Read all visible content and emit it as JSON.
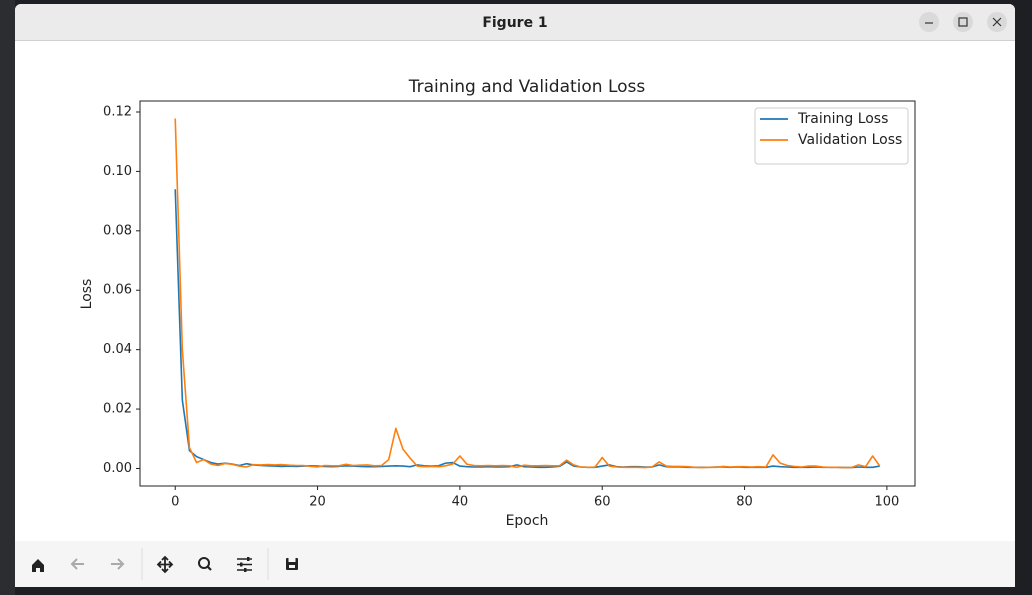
{
  "window": {
    "title": "Figure 1"
  },
  "chart_data": {
    "type": "line",
    "title": "Training and Validation Loss",
    "x_label": "Epoch",
    "y_label": "Loss",
    "x": [
      0,
      1,
      2,
      3,
      4,
      5,
      6,
      7,
      8,
      9,
      10,
      11,
      12,
      13,
      14,
      15,
      16,
      17,
      18,
      19,
      20,
      21,
      22,
      23,
      24,
      25,
      26,
      27,
      28,
      29,
      30,
      31,
      32,
      33,
      34,
      35,
      36,
      37,
      38,
      39,
      40,
      41,
      42,
      43,
      44,
      45,
      46,
      47,
      48,
      49,
      50,
      51,
      52,
      53,
      54,
      55,
      56,
      57,
      58,
      59,
      60,
      61,
      62,
      63,
      64,
      65,
      66,
      67,
      68,
      69,
      70,
      71,
      72,
      73,
      74,
      75,
      76,
      77,
      78,
      79,
      80,
      81,
      82,
      83,
      84,
      85,
      86,
      87,
      88,
      89,
      90,
      91,
      92,
      93,
      94,
      95,
      96,
      97,
      98,
      99
    ],
    "series": [
      {
        "name": "Training Loss",
        "color": "#1f77b4",
        "values": [
          0.094,
          0.023,
          0.006,
          0.004,
          0.003,
          0.002,
          0.0015,
          0.0018,
          0.0015,
          0.001,
          0.0016,
          0.0012,
          0.001,
          0.0009,
          0.0008,
          0.0007,
          0.0008,
          0.0007,
          0.0008,
          0.0009,
          0.0008,
          0.0007,
          0.0006,
          0.0007,
          0.0009,
          0.0008,
          0.0007,
          0.0006,
          0.0006,
          0.0007,
          0.0008,
          0.0009,
          0.0008,
          0.0006,
          0.0012,
          0.0009,
          0.0008,
          0.0009,
          0.0018,
          0.002,
          0.0008,
          0.0006,
          0.0005,
          0.0005,
          0.0006,
          0.0005,
          0.0005,
          0.0006,
          0.0012,
          0.0006,
          0.0005,
          0.0004,
          0.0004,
          0.0005,
          0.0007,
          0.0022,
          0.0008,
          0.0005,
          0.0004,
          0.0004,
          0.0008,
          0.0012,
          0.0006,
          0.0005,
          0.0006,
          0.0006,
          0.0005,
          0.0005,
          0.0012,
          0.0006,
          0.0005,
          0.0005,
          0.0004,
          0.0004,
          0.0004,
          0.0004,
          0.0005,
          0.0005,
          0.0004,
          0.0005,
          0.0004,
          0.0004,
          0.0004,
          0.0004,
          0.0008,
          0.0006,
          0.0005,
          0.0004,
          0.0004,
          0.0004,
          0.0005,
          0.0004,
          0.0004,
          0.0004,
          0.0003,
          0.0003,
          0.0005,
          0.0004,
          0.0004,
          0.0008
        ]
      },
      {
        "name": "Validation Loss",
        "color": "#ff7f0e",
        "values": [
          0.1178,
          0.04,
          0.007,
          0.002,
          0.003,
          0.0015,
          0.001,
          0.0017,
          0.0014,
          0.0008,
          0.0005,
          0.0013,
          0.0012,
          0.0013,
          0.0012,
          0.0013,
          0.0011,
          0.001,
          0.001,
          0.0007,
          0.0005,
          0.001,
          0.0009,
          0.0009,
          0.0014,
          0.001,
          0.0011,
          0.0012,
          0.0009,
          0.001,
          0.003,
          0.0135,
          0.0065,
          0.0035,
          0.0008,
          0.0006,
          0.0007,
          0.0006,
          0.0009,
          0.0015,
          0.0042,
          0.0014,
          0.001,
          0.0009,
          0.001,
          0.0009,
          0.001,
          0.0009,
          0.0004,
          0.0011,
          0.0009,
          0.0009,
          0.001,
          0.0009,
          0.0009,
          0.0028,
          0.0012,
          0.0005,
          0.0004,
          0.0005,
          0.0037,
          0.0008,
          0.0005,
          0.0004,
          0.0004,
          0.0004,
          0.0003,
          0.0005,
          0.0022,
          0.0008,
          0.0007,
          0.0007,
          0.0006,
          0.0004,
          0.0003,
          0.0004,
          0.0004,
          0.0007,
          0.0005,
          0.0006,
          0.0006,
          0.0005,
          0.0006,
          0.0005,
          0.0046,
          0.0018,
          0.001,
          0.0007,
          0.0005,
          0.0008,
          0.0008,
          0.0005,
          0.0004,
          0.0004,
          0.0003,
          0.0003,
          0.0012,
          0.0006,
          0.0042,
          0.0008
        ]
      }
    ],
    "xlim": [
      -4.95,
      103.95
    ],
    "xticks": [
      0,
      20,
      40,
      60,
      80,
      100
    ],
    "ylim": [
      -0.0059,
      0.1237
    ],
    "yticks": [
      {
        "value": 0,
        "label": "0.00"
      },
      {
        "value": 0.02,
        "label": "0.02"
      },
      {
        "value": 0.04,
        "label": "0.04"
      },
      {
        "value": 0.06,
        "label": "0.06"
      },
      {
        "value": 0.08,
        "label": "0.08"
      },
      {
        "value": 0.1,
        "label": "0.10"
      },
      {
        "value": 0.12,
        "label": "0.12"
      }
    ],
    "legend": "upper right",
    "grid": false
  }
}
